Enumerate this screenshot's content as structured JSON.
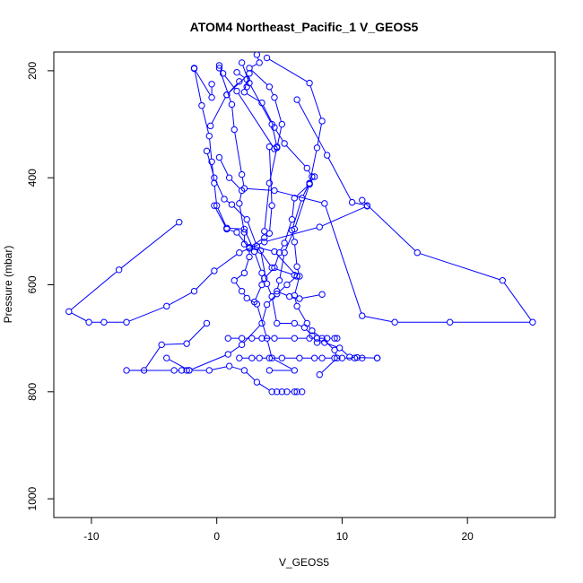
{
  "chart_data": {
    "type": "line",
    "title": "ATOM4 Northeast_Pacific_1 V_GEOS5",
    "xlabel": "V_GEOS5",
    "ylabel": "Pressure (mbar)",
    "xlim": [
      -13,
      27
    ],
    "ylim": [
      1035,
      165
    ],
    "y_axis_inverted": true,
    "x_ticks": [
      -10,
      0,
      10,
      20
    ],
    "y_ticks": [
      200,
      400,
      600,
      800,
      1000
    ],
    "x_tick_labels": [
      "-10",
      "0",
      "10",
      "20"
    ],
    "y_tick_labels": [
      "200",
      "400",
      "600",
      "800",
      "1000"
    ],
    "grid": false,
    "marker": "open-circle",
    "series_color": "#0000ff",
    "series": [
      {
        "points": [
          [
            -3,
            483
          ],
          [
            -7.8,
            572
          ],
          [
            -11.8,
            650
          ],
          [
            -10.2,
            670
          ],
          [
            -9,
            670
          ],
          [
            -7.2,
            670
          ],
          [
            -4,
            640
          ],
          [
            -1.8,
            612
          ],
          [
            -0.2,
            574
          ],
          [
            1.8,
            540
          ],
          [
            3.8,
            520
          ],
          [
            8.2,
            492
          ],
          [
            12,
            453
          ]
        ]
      },
      {
        "points": [
          [
            -0.2,
            452
          ],
          [
            0.8,
            496
          ],
          [
            1.6,
            502
          ],
          [
            2.6,
            532
          ],
          [
            3.5,
            536
          ],
          [
            4,
            598
          ],
          [
            4.4,
            622
          ],
          [
            4.8,
            672
          ],
          [
            6.2,
            672
          ],
          [
            7,
            680
          ],
          [
            7.6,
            695
          ],
          [
            8,
            708
          ],
          [
            8.6,
            708
          ],
          [
            9.8,
            718
          ],
          [
            10.6,
            735
          ],
          [
            11.2,
            736
          ],
          [
            12.8,
            737
          ],
          [
            12.8,
            737
          ]
        ]
      },
      {
        "points": [
          [
            0.9,
            700
          ],
          [
            2,
            700
          ],
          [
            2.8,
            700
          ],
          [
            3.6,
            700
          ],
          [
            4.6,
            700
          ],
          [
            6.2,
            700
          ],
          [
            7.4,
            700
          ],
          [
            8,
            700
          ],
          [
            8.8,
            700
          ],
          [
            9.4,
            700
          ],
          [
            9.6,
            700
          ]
        ]
      },
      {
        "points": [
          [
            -0.8,
            672
          ],
          [
            -2.4,
            710
          ],
          [
            -4.4,
            712
          ],
          [
            -5.8,
            760
          ],
          [
            -7.2,
            760
          ],
          [
            -3.4,
            760
          ],
          [
            -2.8,
            760
          ],
          [
            -2.4,
            760
          ],
          [
            -2.2,
            760
          ],
          [
            -0.6,
            760
          ],
          [
            1,
            752
          ],
          [
            2.2,
            760
          ],
          [
            3.2,
            782
          ],
          [
            4.4,
            800
          ],
          [
            4.8,
            800
          ],
          [
            5.2,
            800
          ],
          [
            5.6,
            800
          ],
          [
            6.2,
            800
          ],
          [
            6.4,
            800
          ],
          [
            6.8,
            800
          ]
        ]
      },
      {
        "points": [
          [
            -4,
            737
          ],
          [
            -2.2,
            760
          ],
          [
            0.9,
            730
          ],
          [
            2,
            712
          ],
          [
            3.6,
            672
          ],
          [
            4,
            637
          ],
          [
            4.8,
            617
          ],
          [
            5.6,
            600
          ],
          [
            6.4,
            584
          ]
        ]
      },
      {
        "points": [
          [
            1.8,
            737
          ],
          [
            2.8,
            737
          ],
          [
            3.4,
            737
          ],
          [
            4.2,
            737
          ],
          [
            5.2,
            737
          ],
          [
            6.6,
            737
          ],
          [
            7.8,
            737
          ],
          [
            8.4,
            737
          ],
          [
            9.4,
            737
          ],
          [
            10,
            737
          ],
          [
            11,
            737
          ],
          [
            11.6,
            737
          ]
        ]
      },
      {
        "points": [
          [
            8.2,
            768
          ],
          [
            9.6,
            737
          ],
          [
            9.4,
            722
          ],
          [
            8.4,
            700
          ],
          [
            7.6,
            686
          ],
          [
            7.2,
            672
          ],
          [
            6.4,
            640
          ],
          [
            6.2,
            620
          ],
          [
            6.6,
            584
          ],
          [
            6.4,
            566
          ],
          [
            6.2,
            520
          ],
          [
            6,
            498
          ],
          [
            6.8,
            438
          ],
          [
            7.4,
            410
          ],
          [
            7.8,
            398
          ]
        ]
      },
      {
        "points": [
          [
            4.2,
            760
          ],
          [
            6.2,
            760
          ],
          [
            4.4,
            737
          ],
          [
            4,
            700
          ],
          [
            3.2,
            636
          ],
          [
            2.4,
            625
          ],
          [
            2,
            612
          ],
          [
            1.4,
            592
          ],
          [
            2.2,
            578
          ],
          [
            2.6,
            548
          ],
          [
            2.6,
            530
          ],
          [
            3.8,
            512
          ],
          [
            4.2,
            504
          ],
          [
            4.4,
            452
          ],
          [
            4.2,
            342
          ]
        ]
      },
      {
        "points": [
          [
            -1.8,
            195
          ],
          [
            -1.2,
            265
          ],
          [
            -0.6,
            322
          ],
          [
            -0.4,
            370
          ],
          [
            -0.2,
            410
          ],
          [
            0,
            452
          ],
          [
            0.8,
            494
          ],
          [
            2.2,
            496
          ],
          [
            3,
            538
          ],
          [
            3.6,
            578
          ],
          [
            3.6,
            600
          ],
          [
            3,
            632
          ]
        ]
      },
      {
        "points": [
          [
            0.2,
            195
          ],
          [
            1.2,
            263
          ],
          [
            1.4,
            310
          ],
          [
            2,
            394
          ],
          [
            2.2,
            420
          ],
          [
            4.6,
            424
          ],
          [
            8.6,
            448
          ],
          [
            11.6,
            658
          ],
          [
            14.2,
            670
          ],
          [
            18.6,
            670
          ],
          [
            25.2,
            670
          ],
          [
            22.8,
            592
          ],
          [
            16,
            540
          ],
          [
            11.6,
            442
          ]
        ]
      },
      {
        "points": [
          [
            1.6,
            203
          ],
          [
            2.4,
            216
          ],
          [
            2.2,
            240
          ],
          [
            3.6,
            260
          ],
          [
            4.6,
            306
          ],
          [
            5.4,
            336
          ],
          [
            7.2,
            382
          ],
          [
            7.6,
            398
          ],
          [
            7.4,
            412
          ],
          [
            6.2,
            496
          ],
          [
            5.4,
            540
          ],
          [
            5,
            592
          ],
          [
            4.8,
            612
          ],
          [
            5.8,
            622
          ],
          [
            6.6,
            626
          ],
          [
            8.4,
            618
          ]
        ]
      },
      {
        "points": [
          [
            4,
            176
          ],
          [
            7.4,
            223
          ],
          [
            8.4,
            294
          ],
          [
            8,
            344
          ],
          [
            7.4,
            412
          ],
          [
            6.2,
            438
          ],
          [
            6,
            478
          ],
          [
            5.4,
            522
          ],
          [
            5,
            540
          ],
          [
            4.6,
            568
          ],
          [
            3.8,
            588
          ]
        ]
      },
      {
        "points": [
          [
            -0.8,
            350
          ],
          [
            -0.2,
            400
          ],
          [
            0.6,
            440
          ],
          [
            1.2,
            450
          ],
          [
            2.4,
            478
          ],
          [
            3.2,
            528
          ],
          [
            4.4,
            568
          ],
          [
            6.2,
            582
          ]
        ]
      },
      {
        "points": [
          [
            0.2,
            362
          ],
          [
            1,
            400
          ],
          [
            2,
            424
          ],
          [
            1.8,
            448
          ],
          [
            2.2,
            502
          ],
          [
            2.2,
            524
          ],
          [
            4.6,
            538
          ],
          [
            6.4,
            584
          ]
        ]
      },
      {
        "points": [
          [
            6.4,
            254
          ],
          [
            8.8,
            358
          ],
          [
            10.8,
            446
          ],
          [
            12,
            452
          ]
        ]
      },
      {
        "points": [
          [
            3.2,
            170
          ],
          [
            3.4,
            185
          ],
          [
            2.6,
            195
          ],
          [
            4.2,
            230
          ],
          [
            4.6,
            250
          ],
          [
            5.2,
            300
          ],
          [
            4.8,
            344
          ],
          [
            4.2,
            410
          ],
          [
            3.8,
            500
          ]
        ]
      },
      {
        "points": [
          [
            0.2,
            190
          ],
          [
            0.5,
            205
          ],
          [
            1.6,
            238
          ],
          [
            4.6,
            346
          ]
        ]
      },
      {
        "points": [
          [
            2,
            185
          ],
          [
            2.6,
            223
          ],
          [
            4.4,
            300
          ],
          [
            4.8,
            342
          ]
        ]
      },
      {
        "points": [
          [
            -0.5,
            303
          ],
          [
            0.8,
            245
          ],
          [
            1.8,
            220
          ]
        ]
      },
      {
        "points": [
          [
            -0.4,
            225
          ],
          [
            -0.4,
            250
          ],
          [
            -1.8,
            196
          ]
        ]
      },
      {
        "points": [
          [
            0.8,
            245
          ],
          [
            2.6,
            205
          ],
          [
            2.4,
            230
          ]
        ]
      }
    ]
  }
}
